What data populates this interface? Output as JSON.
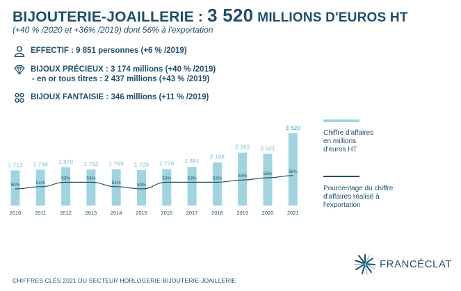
{
  "header": {
    "title_prefix": "BIJOUTERIE-JOAILLERIE :",
    "title_value": "3 520",
    "title_suffix": "MILLIONS D'EUROS HT",
    "subtitle": "(+40 % /2020 et +36% /2019) dont 56% à l'exportation"
  },
  "stats": {
    "effectif": "EFFECTIF : 9 851 personnes (+6 % /2019)",
    "precieux_line1": "BIJOUX PRÉCIEUX : 3 174 millions (+40 % /2019)",
    "precieux_line2": "- en or tous titres : 2 437 millions (+43 % /2019)",
    "fantaisie": "BIJOUX FANTAISIE : 346 millions (+11 % /2019)"
  },
  "legend": {
    "bars": "Chiffre d'affaires en millions d'euros HT",
    "line": "Pourcentage du chiffre d'affaires réalisé à l'exportation"
  },
  "footer": "CHIFFRES CLÉS 2021 DU SECTEUR HORLOGERIE-BIJOUTERIE-JOAILLERIE",
  "brand": "FRANCÉCLAT",
  "colors": {
    "bar": "#9fd5df",
    "bar_label_light": "#9fd5df",
    "bar_label_highlight": "#6fc3d4",
    "line": "#1f4e6b",
    "text": "#1f4e6b"
  },
  "icons": {
    "effectif": "person-icon",
    "precieux": "diamond-icon",
    "fantaisie": "rings-icon",
    "brand": "star-burst-logo-icon"
  },
  "chart_data": {
    "type": "bar",
    "categories": [
      "2010",
      "2011",
      "2012",
      "2013",
      "2014",
      "2015",
      "2016",
      "2017",
      "2018",
      "2019",
      "2020",
      "2021"
    ],
    "series": [
      {
        "name": "Chiffre d'affaires en millions d'euros HT",
        "type": "bar",
        "values": [
          1713,
          1749,
          1870,
          1762,
          1769,
          1729,
          1776,
          1891,
          2108,
          2582,
          2521,
          3520
        ],
        "labels": [
          "1 713",
          "1 749",
          "1 870",
          "1 762",
          "1 769",
          "1 729",
          "1 776",
          "1 891",
          "2 108",
          "2 582",
          "2 521",
          "3 520"
        ]
      },
      {
        "name": "Pourcentage du chiffre d'affaires réalisé à l'exportation",
        "type": "line",
        "values": [
          50,
          51,
          53,
          53,
          51,
          50,
          53,
          53,
          53,
          54,
          55,
          56
        ],
        "labels": [
          "50%",
          "51%",
          "53%",
          "53%",
          "51%",
          "50%",
          "53%",
          "53%",
          "53%",
          "54%",
          "55%",
          "56%"
        ]
      }
    ],
    "title": "",
    "xlabel": "",
    "ylabel": "",
    "ylim": [
      0,
      3520
    ],
    "grid": false,
    "legend_position": "right"
  }
}
